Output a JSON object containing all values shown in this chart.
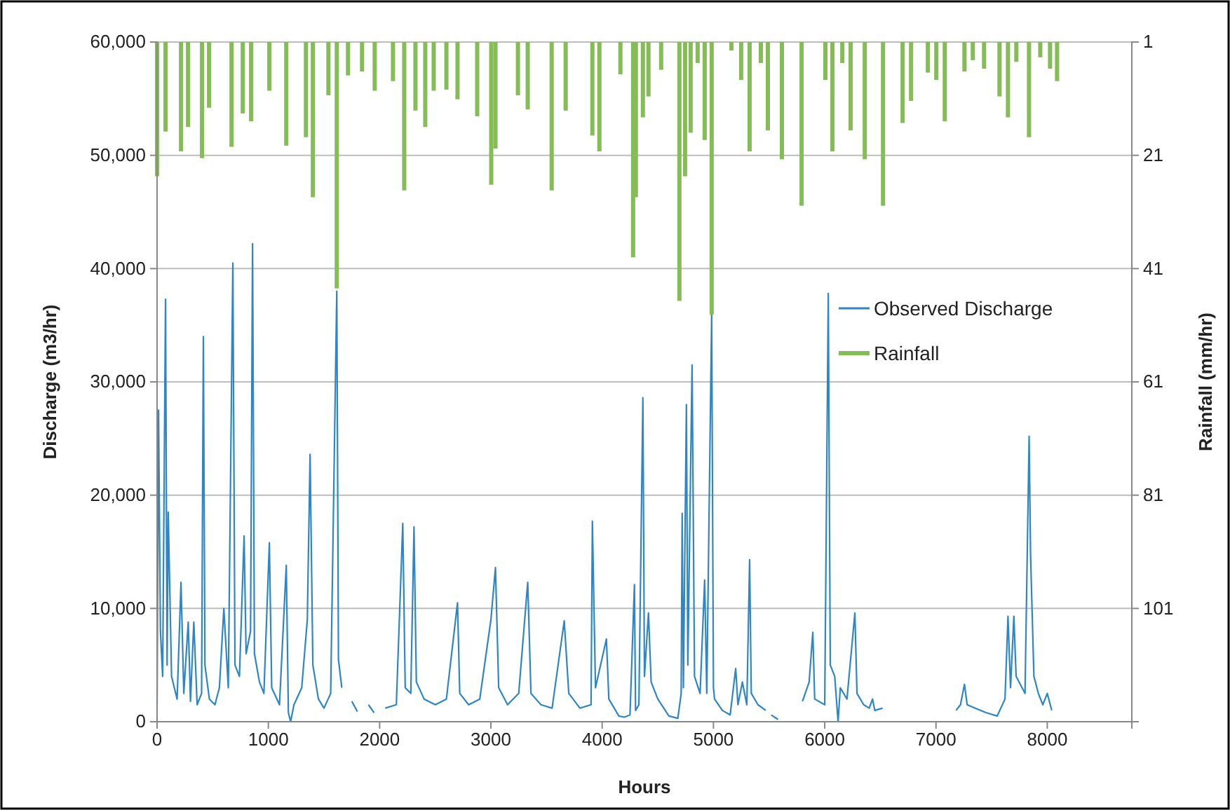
{
  "chart_data": {
    "type": "line",
    "xlabel": "Hours",
    "ylabel": "Discharge (m3/hr)",
    "y2label": "Rainfall (mm/hr)",
    "xlim": [
      0,
      8760
    ],
    "xticks": [
      0,
      1000,
      2000,
      3000,
      4000,
      5000,
      6000,
      7000,
      8000
    ],
    "ylim": [
      0,
      60000
    ],
    "yticks": [
      0,
      {
        "value": 10000,
        "label": "10,000"
      },
      {
        "value": 20000,
        "label": "20,000"
      },
      {
        "value": 30000,
        "label": "30,000"
      },
      {
        "value": 40000,
        "label": "40,000"
      },
      {
        "value": 50000,
        "label": "50,000"
      },
      {
        "value": 60000,
        "label": "60,000"
      }
    ],
    "y2lim": [
      121,
      1
    ],
    "y2ticks": [
      1,
      21,
      41,
      61,
      81,
      101
    ],
    "grid": "y",
    "legend": "right",
    "series": [
      {
        "name": "Observed Discharge",
        "color": "#2f86c5",
        "x": [
          0,
          13,
          30,
          50,
          76,
          90,
          100,
          130,
          180,
          215,
          240,
          280,
          300,
          330,
          360,
          400,
          416,
          430,
          470,
          520,
          560,
          600,
          640,
          681,
          700,
          740,
          782,
          800,
          840,
          858,
          875,
          920,
          960,
          1009,
          1030,
          1100,
          1161,
          1180,
          1200,
          1230,
          1300,
          1350,
          1375,
          1400,
          1450,
          1500,
          1560,
          1615,
          1630,
          1660,
          1700,
          1750,
          1800,
          1850,
          1900,
          1950,
          2000,
          2050,
          2150,
          2208,
          2230,
          2280,
          2309,
          2330,
          2400,
          2500,
          2600,
          2700,
          2720,
          2800,
          2900,
          3000,
          3041,
          3070,
          3150,
          3250,
          3331,
          3360,
          3450,
          3550,
          3659,
          3700,
          3800,
          3900,
          3912,
          3940,
          4038,
          4060,
          4150,
          4200,
          4250,
          4290,
          4300,
          4330,
          4366,
          4380,
          4416,
          4440,
          4500,
          4600,
          4680,
          4710,
          4719,
          4730,
          4757,
          4770,
          4808,
          4830,
          4880,
          4921,
          4940,
          4984,
          5000,
          5010,
          5080,
          5150,
          5200,
          5220,
          5260,
          5300,
          5325,
          5340,
          5400,
          5470,
          5500,
          5520,
          5580,
          5700,
          5800,
          5860,
          5893,
          5910,
          6000,
          6032,
          6050,
          6090,
          6120,
          6140,
          6200,
          6271,
          6290,
          6350,
          6400,
          6430,
          6450,
          6520,
          6800,
          7180,
          7220,
          7256,
          7280,
          7350,
          7450,
          7550,
          7620,
          7647,
          7670,
          7700,
          7720,
          7800,
          7837,
          7850,
          7880,
          7920,
          7960,
          8000,
          8040
        ],
        "values": [
          1500,
          27500,
          8000,
          4000,
          37300,
          5000,
          18500,
          4000,
          2000,
          12300,
          2500,
          8800,
          1800,
          8800,
          1500,
          2500,
          34000,
          5000,
          2000,
          1500,
          3000,
          10000,
          3000,
          40500,
          5000,
          4000,
          16400,
          6000,
          8000,
          42200,
          6000,
          3500,
          2500,
          15800,
          3000,
          1500,
          13800,
          800,
          0,
          1500,
          3000,
          9000,
          23600,
          5000,
          2000,
          1200,
          2500,
          38000,
          5500,
          3000,
          null,
          1800,
          900,
          null,
          1500,
          800,
          null,
          1200,
          1500,
          17500,
          3000,
          2500,
          17200,
          3500,
          2000,
          1500,
          2000,
          10500,
          2500,
          1500,
          2000,
          9000,
          13600,
          3000,
          1500,
          2500,
          12300,
          2500,
          1500,
          1200,
          8900,
          2500,
          1200,
          1500,
          17700,
          3000,
          7300,
          2000,
          500,
          400,
          600,
          12100,
          1000,
          1500,
          28600,
          4000,
          9600,
          3500,
          2000,
          500,
          300,
          2500,
          18400,
          3000,
          28000,
          5000,
          31500,
          4000,
          2500,
          12500,
          2500,
          36000,
          3000,
          2000,
          1000,
          600,
          4700,
          1500,
          3500,
          1500,
          14300,
          2500,
          1500,
          1000,
          null,
          600,
          200,
          null,
          1800,
          3500,
          7900,
          2000,
          1500,
          37800,
          5000,
          4000,
          0,
          3000,
          2000,
          9600,
          2500,
          1500,
          1200,
          2000,
          1000,
          1200,
          null,
          1000,
          1500,
          3300,
          1500,
          1200,
          800,
          500,
          2000,
          9300,
          3000,
          9300,
          4000,
          2500,
          25200,
          14700,
          4000,
          2500,
          1500,
          2500,
          1000
        ]
      },
      {
        "name": "Rainfall",
        "type": "bar",
        "axis": "y2",
        "color": "#86bc57",
        "x": [
          0,
          76,
          215,
          278,
          404,
          467,
          669,
          770,
          845,
          1009,
          1161,
          1338,
          1400,
          1540,
          1615,
          1716,
          1842,
          1956,
          2120,
          2221,
          2322,
          2410,
          2486,
          2600,
          2700,
          2877,
          3003,
          3041,
          3243,
          3331,
          3546,
          3672,
          3912,
          3975,
          4164,
          4278,
          4303,
          4366,
          4416,
          4530,
          4694,
          4745,
          4795,
          4858,
          4921,
          4984,
          5161,
          5249,
          5325,
          5426,
          5489,
          5615,
          5792,
          6006,
          6069,
          6158,
          6233,
          6360,
          6524,
          6700,
          6776,
          6927,
          7003,
          7079,
          7256,
          7331,
          7432,
          7571,
          7647,
          7722,
          7836,
          7937,
          8025,
          8088
        ],
        "values": [
          24.7,
          16.8,
          20.3,
          16,
          21.5,
          12.6,
          19.5,
          13.6,
          15,
          9.6,
          19.3,
          17.8,
          28.4,
          10.4,
          44.5,
          6.9,
          6.2,
          9.6,
          7.9,
          27.2,
          13.1,
          16,
          9.6,
          9.4,
          11.1,
          14.1,
          26.2,
          19.8,
          10.4,
          12.9,
          27.2,
          13.1,
          17.5,
          20.3,
          6.7,
          39,
          28.4,
          14.3,
          10.6,
          5.9,
          46.7,
          24.7,
          17,
          4.7,
          18.3,
          49.1,
          2.5,
          7.7,
          20.3,
          4.7,
          16.6,
          21.7,
          29.9,
          7.7,
          20.3,
          4.7,
          16.6,
          21.7,
          29.9,
          15.3,
          11.4,
          6.4,
          7.7,
          15,
          6.2,
          4.2,
          5.7,
          10.6,
          14.3,
          4.5,
          17.8,
          3.7,
          5.7,
          7.9
        ]
      }
    ]
  }
}
